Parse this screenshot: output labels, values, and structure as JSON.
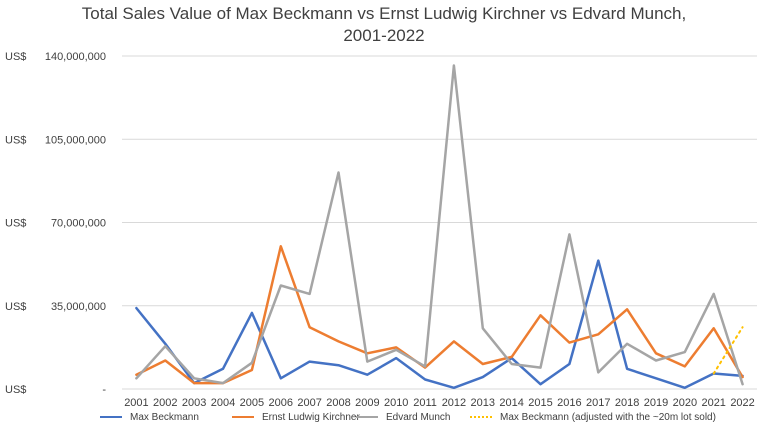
{
  "chart_data": {
    "type": "line",
    "title_lines": [
      "Total Sales Value of Max Beckmann vs Ernst Ludwig Kirchner vs Edvard Munch,",
      "2001-2022"
    ],
    "x": [
      "2001",
      "2002",
      "2003",
      "2004",
      "2005",
      "2006",
      "2007",
      "2008",
      "2009",
      "2010",
      "2011",
      "2012",
      "2013",
      "2014",
      "2015",
      "2016",
      "2017",
      "2018",
      "2019",
      "2020",
      "2021",
      "2022"
    ],
    "ylim": [
      0,
      140000000
    ],
    "yticks": [
      {
        "value": 0,
        "prefix": "US$",
        "label": "-"
      },
      {
        "value": 35000000,
        "prefix": "US$",
        "label": "35,000,000"
      },
      {
        "value": 70000000,
        "prefix": "US$",
        "label": "70,000,000"
      },
      {
        "value": 105000000,
        "prefix": "US$",
        "label": "105,000,000"
      },
      {
        "value": 140000000,
        "prefix": "US$",
        "label": "140,000,000"
      }
    ],
    "grid": true,
    "legend_position": "bottom",
    "series": [
      {
        "name": "Max Beckmann",
        "color": "#4472C4",
        "dash": false,
        "values": [
          34000000,
          19000000,
          2500000,
          8500000,
          32000000,
          4500000,
          11500000,
          10000000,
          6000000,
          13000000,
          4000000,
          500000,
          5000000,
          13000000,
          2000000,
          10500000,
          54000000,
          8500000,
          4500000,
          500000,
          6500000,
          5500000
        ]
      },
      {
        "name": "Ernst Ludwig Kirchner",
        "color": "#ED7D31",
        "dash": false,
        "values": [
          6000000,
          12000000,
          2500000,
          2500000,
          8000000,
          60000000,
          26000000,
          20000000,
          15000000,
          17500000,
          9000000,
          20000000,
          10500000,
          13500000,
          31000000,
          19500000,
          23000000,
          33500000,
          15000000,
          9500000,
          25500000,
          5000000
        ]
      },
      {
        "name": "Edvard Munch",
        "color": "#A5A5A5",
        "dash": false,
        "values": [
          4500000,
          18000000,
          4500000,
          2500000,
          11000000,
          43500000,
          40000000,
          91000000,
          11500000,
          16500000,
          9500000,
          136000000,
          25500000,
          10500000,
          9000000,
          65000000,
          7000000,
          19000000,
          12000000,
          15500000,
          40000000,
          2000000
        ]
      },
      {
        "name": "Max Beckmann (adjusted with the ~20m lot sold)",
        "color": "#FFC000",
        "dash": true,
        "x": [
          "2021",
          "2022"
        ],
        "values": [
          6500000,
          26000000
        ]
      }
    ]
  }
}
